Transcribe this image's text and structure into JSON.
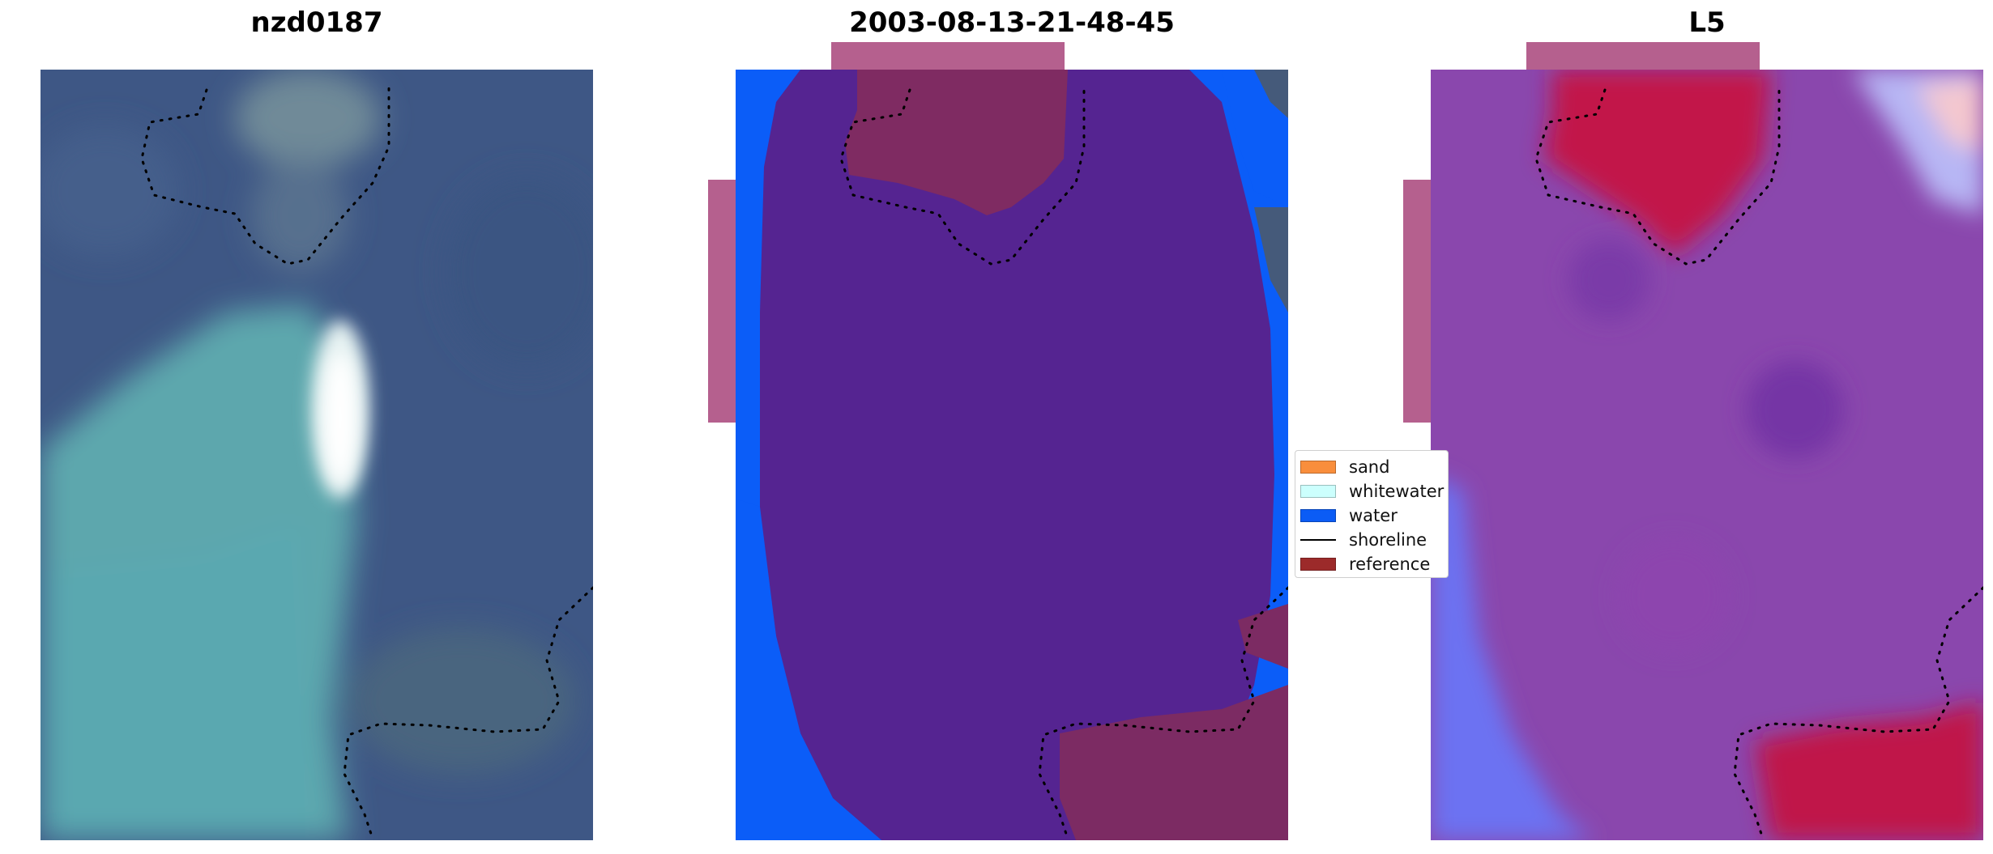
{
  "panels": [
    {
      "title": "nzd0187"
    },
    {
      "title": "2003-08-13-21-48-45"
    },
    {
      "title": "L5"
    }
  ],
  "legend": {
    "items": [
      {
        "label": "sand",
        "color": "#f98e3c",
        "kind": "patch"
      },
      {
        "label": "whitewater",
        "color": "#ccfffd",
        "kind": "patch"
      },
      {
        "label": "water",
        "color": "#0b5cf5",
        "kind": "patch"
      },
      {
        "label": "shoreline",
        "color": "#000000",
        "kind": "line"
      },
      {
        "label": "reference",
        "color": "#9c2a2a",
        "kind": "patch"
      }
    ]
  },
  "colors": {
    "rgb_base": "#3d5683",
    "rgb_land": "#5aa3a8",
    "rgb_bright": "#e8f3f3",
    "class_water_overlay": "#552491",
    "class_water": "#0a5df8",
    "class_reference": "#7d2c63",
    "mask_ring": "#b5608e",
    "index_base": "#8a46ac",
    "index_red": "#c6163e",
    "index_blue": "#6e72f0"
  },
  "icons": [
    "panel-rgb-image",
    "panel-classification-image",
    "panel-index-image"
  ]
}
